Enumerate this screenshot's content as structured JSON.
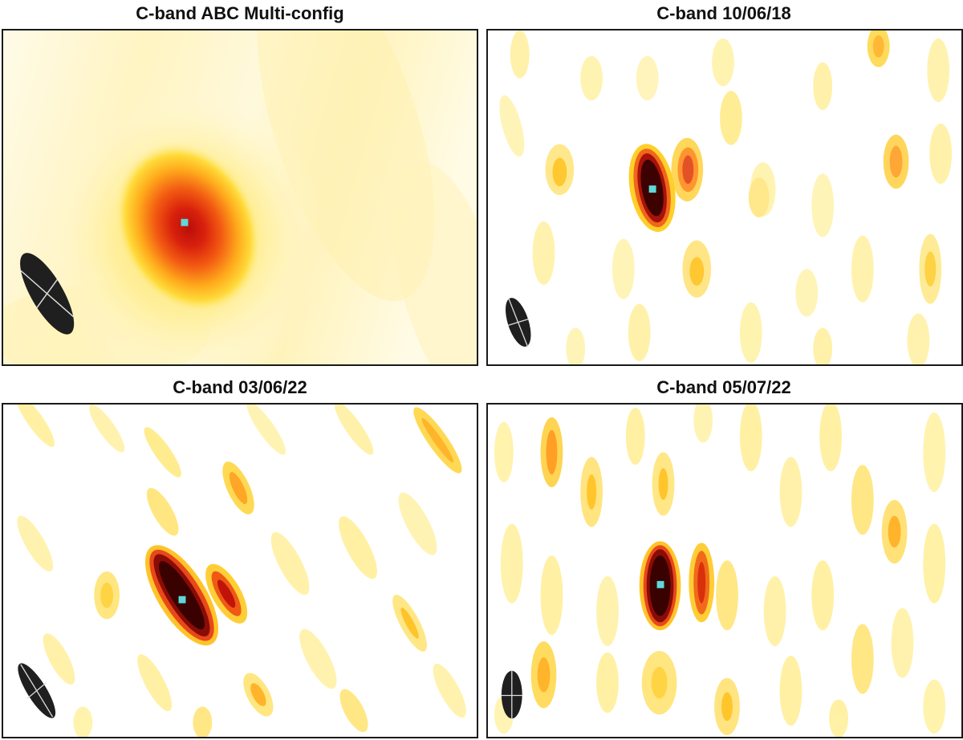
{
  "panels": [
    {
      "title": "C-band ABC Multi-config",
      "colors": {
        "background": "#ffffff",
        "border": "#1a1a1a",
        "peak_marker": "#5fd8d8",
        "beam": "#1f1f1f"
      }
    },
    {
      "title": "C-band 10/06/18",
      "colors": {
        "background": "#ffffff",
        "border": "#1a1a1a",
        "peak_marker": "#5fd8d8",
        "beam": "#1f1f1f"
      }
    },
    {
      "title": "C-band 03/06/22",
      "colors": {
        "background": "#ffffff",
        "border": "#1a1a1a",
        "peak_marker": "#5fd8d8",
        "beam": "#1f1f1f"
      }
    },
    {
      "title": "C-band 05/07/22",
      "colors": {
        "background": "#ffffff",
        "border": "#1a1a1a",
        "peak_marker": "#5fd8d8",
        "beam": "#1f1f1f"
      }
    }
  ],
  "colormap": [
    "#ffffff",
    "#fff3a0",
    "#ffd21a",
    "#ff9a1a",
    "#f04a10",
    "#c0140a",
    "#5a0505",
    "#2a0000"
  ]
}
